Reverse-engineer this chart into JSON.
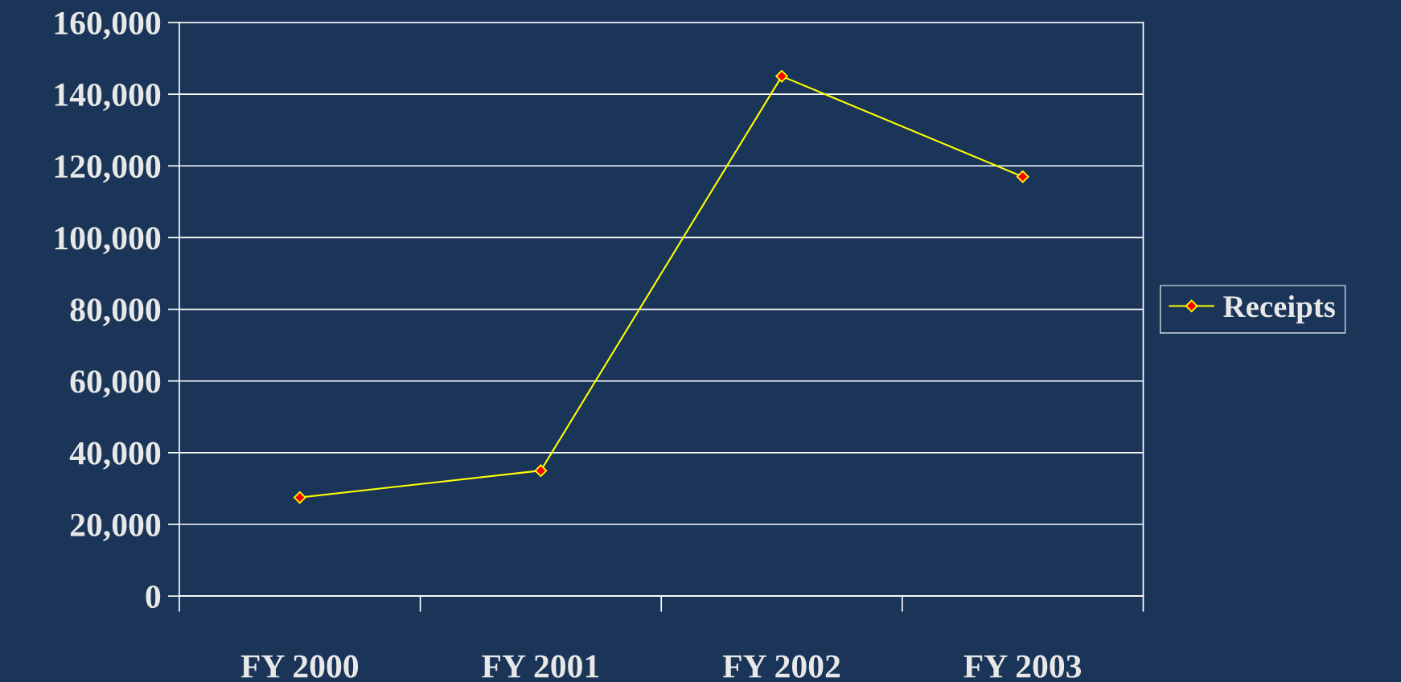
{
  "chart_data": {
    "type": "line",
    "categories": [
      "FY 2000",
      "FY 2001",
      "FY 2002",
      "FY 2003"
    ],
    "series": [
      {
        "name": "Receipts",
        "color": "#ffff00",
        "values": [
          27500,
          35000,
          145000,
          117000
        ]
      }
    ],
    "ylim": [
      0,
      160000
    ],
    "yticks": [
      {
        "value": 0,
        "label": "0"
      },
      {
        "value": 20000,
        "label": "20,000"
      },
      {
        "value": 40000,
        "label": "40,000"
      },
      {
        "value": 60000,
        "label": "60,000"
      },
      {
        "value": 80000,
        "label": "80,000"
      },
      {
        "value": 100000,
        "label": "100,000"
      },
      {
        "value": 120000,
        "label": "120,000"
      },
      {
        "value": 140000,
        "label": "140,000"
      },
      {
        "value": 160000,
        "label": "160,000"
      }
    ],
    "grid": "y",
    "legend": "right",
    "marker": "diamond",
    "line_style": "solid"
  }
}
